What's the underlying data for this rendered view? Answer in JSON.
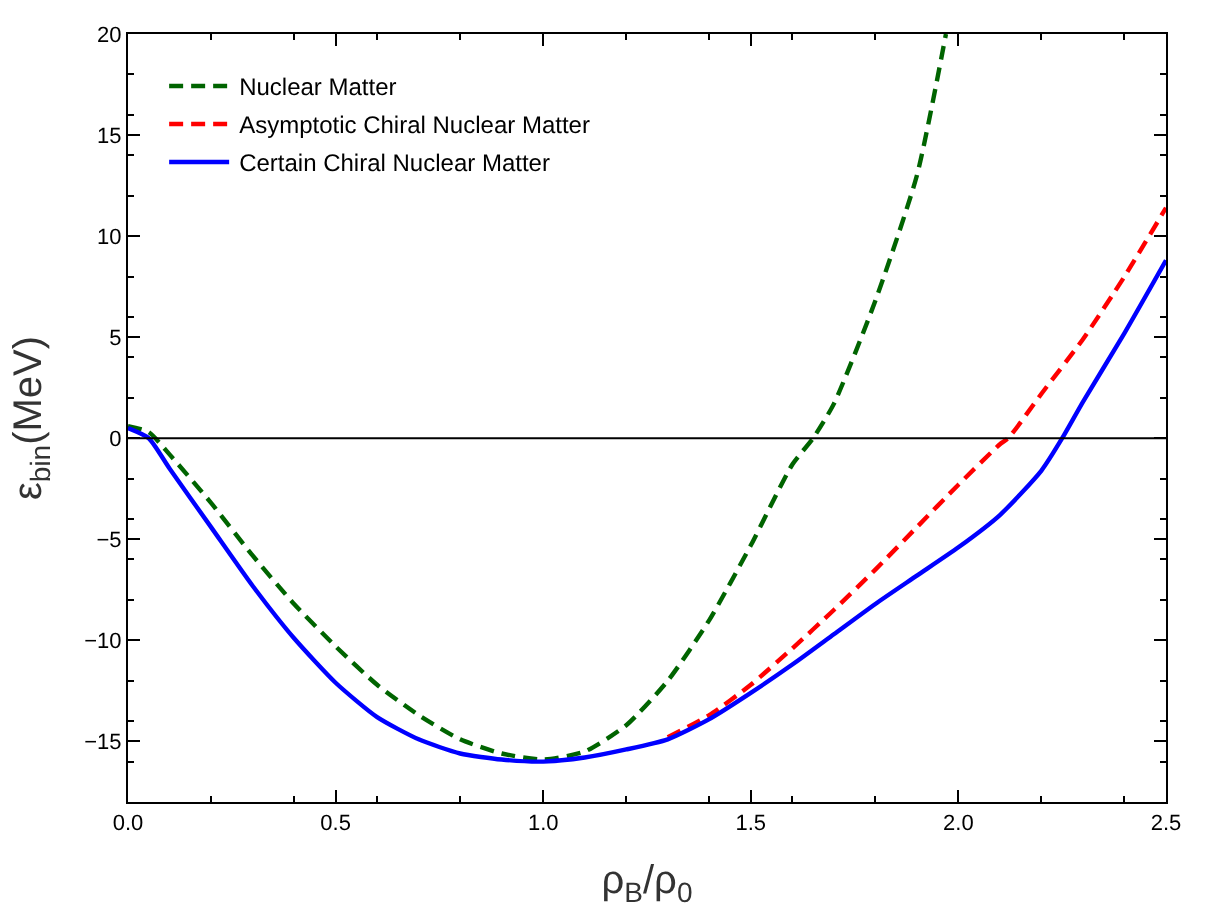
{
  "chart_data": {
    "type": "line",
    "xlabel": "ρ$_{B}$/ρ$_{0}$",
    "ylabel": "ε$_{bin}$(MeV)",
    "xlim": [
      0,
      2.5
    ],
    "xticks": [
      {
        "value": 0,
        "label": "0.0"
      },
      0.5,
      {
        "value": 1,
        "label": "1.0"
      },
      1.5,
      {
        "value": 2,
        "label": "2.0"
      },
      2.5
    ],
    "ylim": [
      -18,
      20
    ],
    "yticks": [
      -15,
      -10,
      -5,
      0,
      5,
      10,
      15,
      20
    ],
    "legend": "top left",
    "marker": "none",
    "ref_lines": [
      {
        "axis": "y",
        "value": 0,
        "color": "#000000",
        "line_style": "solid"
      }
    ],
    "series": [
      {
        "name": "Nuclear Matter",
        "color": "#006400",
        "line_style": "dashed",
        "x": [
          0,
          0.05,
          0.1,
          0.2,
          0.3,
          0.4,
          0.5,
          0.6,
          0.7,
          0.8,
          0.9,
          1.0,
          1.1,
          1.2,
          1.3,
          1.4,
          1.5,
          1.6,
          1.65,
          1.7,
          1.8,
          1.9,
          1.97
        ],
        "values": [
          0.6,
          0.3,
          -0.8,
          -3.2,
          -5.8,
          -8.2,
          -10.3,
          -12.2,
          -13.7,
          -14.9,
          -15.6,
          -15.9,
          -15.5,
          -14.2,
          -12,
          -9,
          -5.3,
          -1.3,
          0,
          1.7,
          6.8,
          13,
          20
        ]
      },
      {
        "name": "Asymptotic Chiral Nuclear Matter",
        "color": "#ff0000",
        "line_style": "dashed",
        "x": [
          1.3,
          1.4,
          1.5,
          1.6,
          1.7,
          1.8,
          1.9,
          2.0,
          2.1,
          2.12,
          2.2,
          2.3,
          2.4,
          2.5
        ],
        "values": [
          -14.8,
          -13.7,
          -12.2,
          -10.4,
          -8.5,
          -6.5,
          -4.4,
          -2.3,
          -0.3,
          0,
          2.2,
          4.9,
          8.0,
          11.4
        ]
      },
      {
        "name": "Certain Chiral Nuclear Matter",
        "color": "#0000ff",
        "line_style": "solid",
        "x": [
          0,
          0.05,
          0.1,
          0.2,
          0.3,
          0.4,
          0.5,
          0.6,
          0.7,
          0.8,
          0.9,
          1.0,
          1.1,
          1.2,
          1.3,
          1.4,
          1.5,
          1.6,
          1.7,
          1.8,
          1.9,
          2.0,
          2.1,
          2.2,
          2.25,
          2.3,
          2.4,
          2.5
        ],
        "values": [
          0.5,
          0,
          -1.5,
          -4.4,
          -7.3,
          -9.9,
          -12.1,
          -13.8,
          -14.9,
          -15.6,
          -15.9,
          -16,
          -15.8,
          -15.4,
          -14.9,
          -13.9,
          -12.6,
          -11.2,
          -9.7,
          -8.2,
          -6.8,
          -5.4,
          -3.8,
          -1.6,
          0,
          1.8,
          5.2,
          8.8
        ]
      }
    ]
  }
}
